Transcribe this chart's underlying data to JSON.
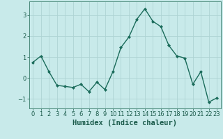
{
  "x": [
    0,
    1,
    2,
    3,
    4,
    5,
    6,
    7,
    8,
    9,
    10,
    11,
    12,
    13,
    14,
    15,
    16,
    17,
    18,
    19,
    20,
    21,
    22,
    23
  ],
  "y": [
    0.75,
    1.05,
    0.3,
    -0.35,
    -0.4,
    -0.45,
    -0.3,
    -0.65,
    -0.2,
    -0.55,
    0.3,
    1.45,
    1.95,
    2.8,
    3.3,
    2.7,
    2.45,
    1.55,
    1.05,
    0.95,
    -0.3,
    0.3,
    -1.15,
    -0.95
  ],
  "line_color": "#1a6b5a",
  "marker": "D",
  "markersize": 2.0,
  "linewidth": 1.0,
  "bg_color": "#c8eaea",
  "grid_color": "#aed4d4",
  "spine_color": "#4a8a7a",
  "xlabel": "Humidex (Indice chaleur)",
  "xlabel_fontsize": 7.5,
  "yticks": [
    -1,
    0,
    1,
    2,
    3
  ],
  "xticks": [
    0,
    1,
    2,
    3,
    4,
    5,
    6,
    7,
    8,
    9,
    10,
    11,
    12,
    13,
    14,
    15,
    16,
    17,
    18,
    19,
    20,
    21,
    22,
    23
  ],
  "xlim": [
    -0.5,
    23.5
  ],
  "ylim": [
    -1.45,
    3.65
  ],
  "tick_fontsize": 6.0,
  "tick_color": "#1a5a4a",
  "label_color": "#1a5a4a"
}
